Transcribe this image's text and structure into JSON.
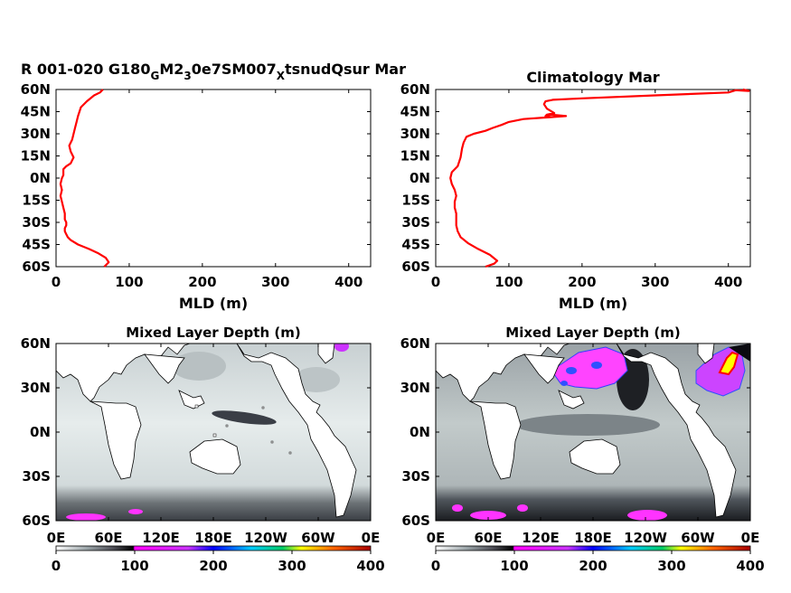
{
  "chart_data": [
    {
      "type": "line",
      "title_parts": [
        "R 001-020 G180",
        "G",
        "M2",
        "3",
        "0e7SM007",
        "X",
        "tsnudQsur Mar"
      ],
      "xlabel": "MLD (m)",
      "xlim": [
        0,
        430
      ],
      "ylim": [
        -60,
        60
      ],
      "xticks": [
        0,
        100,
        200,
        300,
        400
      ],
      "yticks": [
        "60N",
        "45N",
        "30N",
        "15N",
        "0N",
        "15S",
        "30S",
        "45S",
        "60S"
      ],
      "line_color": "#ff0000",
      "series": [
        {
          "x": [
            64,
            60,
            52,
            42,
            34,
            32,
            30,
            28,
            26,
            24,
            22,
            18,
            20,
            24,
            20,
            14,
            10,
            10,
            8,
            6,
            8,
            6,
            8,
            10,
            12,
            12,
            14,
            14,
            12,
            12,
            14,
            16,
            20,
            30,
            45,
            58,
            68,
            72,
            66
          ],
          "y": [
            60,
            58,
            56,
            52,
            48,
            45,
            42,
            38,
            34,
            30,
            26,
            22,
            18,
            14,
            10,
            8,
            6,
            2,
            0,
            -4,
            -8,
            -12,
            -16,
            -20,
            -24,
            -28,
            -30,
            -32,
            -34,
            -36,
            -38,
            -40,
            -42,
            -45,
            -48,
            -51,
            -54,
            -57,
            -60
          ]
        }
      ]
    },
    {
      "type": "line",
      "title": "Climatology Mar",
      "xlabel": "MLD (m)",
      "xlim": [
        0,
        430
      ],
      "ylim": [
        -60,
        60
      ],
      "xticks": [
        0,
        100,
        200,
        300,
        400
      ],
      "yticks": [
        "60N",
        "45N",
        "30N",
        "15N",
        "0N",
        "15S",
        "30S",
        "45S",
        "60S"
      ],
      "line_color": "#ff0000",
      "series": [
        {
          "x": [
            420,
            428,
            410,
            400,
            300,
            200,
            160,
            150,
            148,
            152,
            162,
            152,
            150,
            158,
            178,
            150,
            120,
            100,
            90,
            78,
            68,
            52,
            42,
            38,
            36,
            34,
            30,
            22,
            20,
            22,
            26,
            28,
            26,
            26,
            28,
            28,
            28,
            30,
            34,
            44,
            58,
            74,
            84,
            80,
            68
          ],
          "y": [
            60,
            59,
            59.5,
            58,
            56,
            54,
            53,
            52,
            50,
            47,
            44,
            43,
            42,
            43,
            42,
            41,
            40,
            38,
            36,
            34,
            32,
            30,
            28,
            24,
            20,
            14,
            8,
            4,
            0,
            -4,
            -8,
            -12,
            -16,
            -20,
            -24,
            -28,
            -32,
            -36,
            -40,
            -44,
            -48,
            -52,
            -56,
            -58,
            -60
          ]
        }
      ]
    },
    {
      "type": "heatmap",
      "title": "Mixed Layer Depth (m)",
      "xticks": [
        "0E",
        "60E",
        "120E",
        "180E",
        "120W",
        "60W",
        "0E"
      ],
      "yticks": [
        "60N",
        "30N",
        "0N",
        "30S",
        "60S"
      ],
      "colorbar_ticks": [
        0,
        100,
        200,
        300,
        400
      ],
      "colorbar_stops": [
        "#ffffff",
        "#9aa4a8",
        "#505058",
        "#000000",
        "#ff00ff",
        "#cc33ff",
        "#0000ff",
        "#00ccff",
        "#00cc66",
        "#ffff00",
        "#ff6600",
        "#aa0000"
      ],
      "color_range": [
        0,
        400
      ]
    },
    {
      "type": "heatmap",
      "title": "Mixed Layer Depth (m)",
      "xticks": [
        "0E",
        "60E",
        "120E",
        "180E",
        "120W",
        "60W",
        "0E"
      ],
      "yticks": [
        "60N",
        "30N",
        "0N",
        "30S",
        "60S"
      ],
      "colorbar_ticks": [
        0,
        100,
        200,
        300,
        400
      ],
      "colorbar_stops": [
        "#ffffff",
        "#9aa4a8",
        "#505058",
        "#000000",
        "#ff00ff",
        "#cc33ff",
        "#0000ff",
        "#00ccff",
        "#00cc66",
        "#ffff00",
        "#ff6600",
        "#aa0000"
      ],
      "color_range": [
        0,
        400
      ]
    }
  ]
}
